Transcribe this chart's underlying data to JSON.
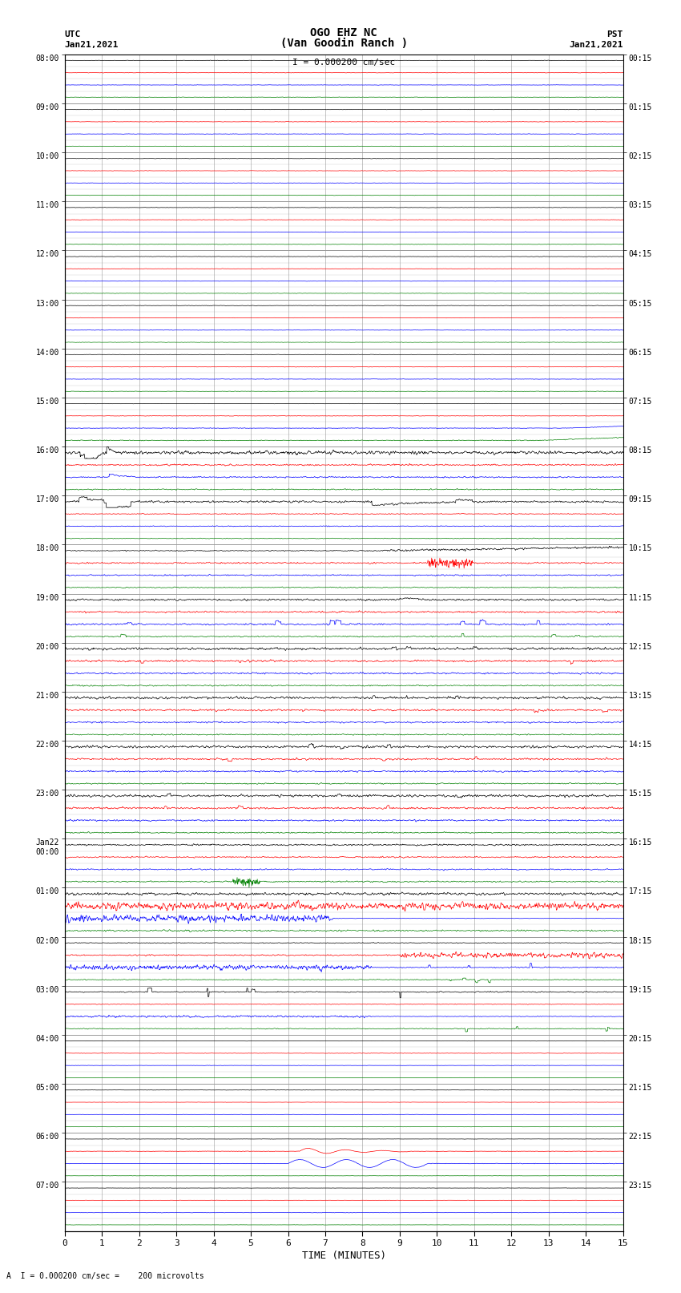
{
  "title_line1": "OGO EHZ NC",
  "title_line2": "(Van Goodin Ranch )",
  "title_scale": "I = 0.000200 cm/sec",
  "left_label_top": "UTC",
  "left_label_date": "Jan21,2021",
  "right_label_top": "PST",
  "right_label_date": "Jan21,2021",
  "xlabel": "TIME (MINUTES)",
  "bottom_note": "A  I = 0.000200 cm/sec =    200 microvolts",
  "utc_labels": [
    "08:00",
    "09:00",
    "10:00",
    "11:00",
    "12:00",
    "13:00",
    "14:00",
    "15:00",
    "16:00",
    "17:00",
    "18:00",
    "19:00",
    "20:00",
    "21:00",
    "22:00",
    "23:00",
    "Jan22\n00:00",
    "01:00",
    "02:00",
    "03:00",
    "04:00",
    "05:00",
    "06:00",
    "07:00"
  ],
  "pst_labels": [
    "00:15",
    "01:15",
    "02:15",
    "03:15",
    "04:15",
    "05:15",
    "06:15",
    "07:15",
    "08:15",
    "09:15",
    "10:15",
    "11:15",
    "12:15",
    "13:15",
    "14:15",
    "15:15",
    "16:15",
    "17:15",
    "18:15",
    "19:15",
    "20:15",
    "21:15",
    "22:15",
    "23:15"
  ],
  "n_hours": 24,
  "n_traces": 4,
  "n_cols": 15,
  "bg_color": "#ffffff",
  "grid_color": "#999999",
  "minor_grid_color": "#cccccc",
  "trace_colors": [
    "black",
    "red",
    "blue",
    "green"
  ],
  "figsize": [
    8.5,
    16.13
  ],
  "dpi": 100
}
